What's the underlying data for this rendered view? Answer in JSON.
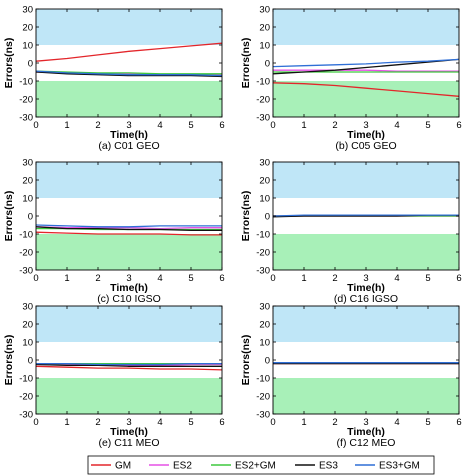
{
  "chart_data": [
    {
      "type": "line",
      "caption": "(a) C01 GEO",
      "xlabel": "Time(h)",
      "ylabel": "Errors(ns)",
      "xlim": [
        0,
        6
      ],
      "ylim": [
        -30,
        30
      ],
      "xticks": [
        0,
        1,
        2,
        3,
        4,
        5,
        6
      ],
      "yticks": [
        -30,
        -20,
        -10,
        0,
        10,
        20,
        30
      ],
      "bands": [
        {
          "from": 10,
          "to": 30,
          "color": "#bfe6f7"
        },
        {
          "from": -30,
          "to": -10,
          "color": "#a8f0b8"
        }
      ],
      "x": [
        0,
        1,
        2,
        3,
        4,
        5,
        6
      ],
      "series": [
        {
          "name": "GM",
          "color": "#e3262b",
          "values": [
            1,
            2.5,
            4.5,
            6.5,
            8,
            9.5,
            11
          ]
        },
        {
          "name": "ES2",
          "color": "#e651e6",
          "values": [
            -5,
            -5.5,
            -6,
            -6,
            -6.5,
            -6.5,
            -6.5
          ]
        },
        {
          "name": "ES2+GM",
          "color": "#3ec93e",
          "values": [
            -4.5,
            -5,
            -5.5,
            -5.5,
            -6,
            -6,
            -6
          ]
        },
        {
          "name": "ES3",
          "color": "#111111",
          "values": [
            -5,
            -6,
            -6.5,
            -7,
            -7,
            -7,
            -7.5
          ]
        },
        {
          "name": "ES3+GM",
          "color": "#2f6fd6",
          "values": [
            -4.5,
            -5.5,
            -6,
            -6.5,
            -6.5,
            -6.5,
            -7
          ]
        }
      ]
    },
    {
      "type": "line",
      "caption": "(b) C05 GEO",
      "xlabel": "Time(h)",
      "ylabel": "Errors(ns)",
      "xlim": [
        0,
        6
      ],
      "ylim": [
        -30,
        30
      ],
      "xticks": [
        0,
        1,
        2,
        3,
        4,
        5,
        6
      ],
      "yticks": [
        -30,
        -20,
        -10,
        0,
        10,
        20,
        30
      ],
      "bands": [
        {
          "from": 10,
          "to": 30,
          "color": "#bfe6f7"
        },
        {
          "from": -30,
          "to": -10,
          "color": "#a8f0b8"
        }
      ],
      "x": [
        0,
        1,
        2,
        3,
        4,
        5,
        6
      ],
      "series": [
        {
          "name": "GM",
          "color": "#e3262b",
          "values": [
            -11,
            -11.5,
            -12.5,
            -14,
            -15.5,
            -17,
            -18.5
          ]
        },
        {
          "name": "ES2",
          "color": "#e651e6",
          "values": [
            -4,
            -4,
            -4,
            -4,
            -4.5,
            -4.5,
            -4.5
          ]
        },
        {
          "name": "ES2+GM",
          "color": "#3ec93e",
          "values": [
            -5,
            -5,
            -5,
            -5,
            -5,
            -5,
            -5
          ]
        },
        {
          "name": "ES3",
          "color": "#111111",
          "values": [
            -6,
            -5,
            -4,
            -2.5,
            -1,
            0.5,
            2
          ]
        },
        {
          "name": "ES3+GM",
          "color": "#2f6fd6",
          "values": [
            -2,
            -1.5,
            -1,
            -0.5,
            0.5,
            1,
            2
          ]
        }
      ]
    },
    {
      "type": "line",
      "caption": "(c) C10 IGSO",
      "xlabel": "Time(h)",
      "ylabel": "Errors(ns)",
      "xlim": [
        0,
        6
      ],
      "ylim": [
        -30,
        30
      ],
      "xticks": [
        0,
        1,
        2,
        3,
        4,
        5,
        6
      ],
      "yticks": [
        -30,
        -20,
        -10,
        0,
        10,
        20,
        30
      ],
      "bands": [
        {
          "from": 10,
          "to": 30,
          "color": "#bfe6f7"
        },
        {
          "from": -30,
          "to": -10,
          "color": "#a8f0b8"
        }
      ],
      "x": [
        0,
        1,
        2,
        3,
        4,
        5,
        6
      ],
      "series": [
        {
          "name": "GM",
          "color": "#e3262b",
          "values": [
            -9,
            -9.5,
            -10,
            -10,
            -10,
            -10.5,
            -10.5
          ]
        },
        {
          "name": "ES2",
          "color": "#e651e6",
          "values": [
            -6,
            -6.5,
            -6.5,
            -6.5,
            -7,
            -6.5,
            -6.5
          ]
        },
        {
          "name": "ES2+GM",
          "color": "#3ec93e",
          "values": [
            -7,
            -7,
            -7.5,
            -7.5,
            -7.5,
            -7.5,
            -7.5
          ]
        },
        {
          "name": "ES3",
          "color": "#111111",
          "values": [
            -6,
            -7,
            -7,
            -7.5,
            -7.5,
            -8,
            -8
          ]
        },
        {
          "name": "ES3+GM",
          "color": "#2f6fd6",
          "values": [
            -5,
            -5.5,
            -6,
            -6,
            -5.5,
            -5.5,
            -5.5
          ]
        }
      ]
    },
    {
      "type": "line",
      "caption": "(d) C16 IGSO",
      "xlabel": "Time(h)",
      "ylabel": "Errors(ns)",
      "xlim": [
        0,
        6
      ],
      "ylim": [
        -30,
        30
      ],
      "xticks": [
        0,
        1,
        2,
        3,
        4,
        5,
        6
      ],
      "yticks": [
        -30,
        -20,
        -10,
        0,
        10,
        20,
        30
      ],
      "bands": [
        {
          "from": 10,
          "to": 30,
          "color": "#bfe6f7"
        },
        {
          "from": -30,
          "to": -10,
          "color": "#a8f0b8"
        }
      ],
      "x": [
        0,
        1,
        2,
        3,
        4,
        5,
        6
      ],
      "series": [
        {
          "name": "GM",
          "color": "#e3262b",
          "values": [
            0,
            0,
            0,
            0,
            0,
            0,
            0
          ]
        },
        {
          "name": "ES2",
          "color": "#e651e6",
          "values": [
            0,
            0,
            0,
            0,
            0,
            0,
            0
          ]
        },
        {
          "name": "ES2+GM",
          "color": "#3ec93e",
          "values": [
            0,
            0,
            0,
            0,
            0,
            0,
            0
          ]
        },
        {
          "name": "ES3",
          "color": "#111111",
          "values": [
            -0.5,
            0,
            0,
            0,
            0,
            0.5,
            0.5
          ]
        },
        {
          "name": "ES3+GM",
          "color": "#2f6fd6",
          "values": [
            0,
            0.5,
            0.5,
            0.5,
            0.5,
            0.5,
            0.5
          ]
        }
      ]
    },
    {
      "type": "line",
      "caption": "(e) C11 MEO",
      "xlabel": "Time(h)",
      "ylabel": "Errors(ns)",
      "xlim": [
        0,
        6
      ],
      "ylim": [
        -30,
        30
      ],
      "xticks": [
        0,
        1,
        2,
        3,
        4,
        5,
        6
      ],
      "yticks": [
        -30,
        -20,
        -10,
        0,
        10,
        20,
        30
      ],
      "bands": [
        {
          "from": 10,
          "to": 30,
          "color": "#bfe6f7"
        },
        {
          "from": -30,
          "to": -10,
          "color": "#a8f0b8"
        }
      ],
      "x": [
        0,
        1,
        2,
        3,
        4,
        5,
        6
      ],
      "series": [
        {
          "name": "GM",
          "color": "#e3262b",
          "values": [
            -3.5,
            -4,
            -4.5,
            -4.5,
            -5,
            -5,
            -5.5
          ]
        },
        {
          "name": "ES2",
          "color": "#e651e6",
          "values": [
            -2,
            -2.5,
            -2.5,
            -3,
            -3,
            -2.5,
            -2.5
          ]
        },
        {
          "name": "ES2+GM",
          "color": "#3ec93e",
          "values": [
            -2,
            -2,
            -2,
            -2,
            -2,
            -2,
            -2
          ]
        },
        {
          "name": "ES3",
          "color": "#111111",
          "values": [
            -2.5,
            -3,
            -3,
            -3.5,
            -3.5,
            -3.5,
            -3.5
          ]
        },
        {
          "name": "ES3+GM",
          "color": "#2f6fd6",
          "values": [
            -2,
            -2,
            -2.5,
            -2.5,
            -2.5,
            -2,
            -2
          ]
        }
      ]
    },
    {
      "type": "line",
      "caption": "(f) C12 MEO",
      "xlabel": "Time(h)",
      "ylabel": "Errors(ns)",
      "xlim": [
        0,
        6
      ],
      "ylim": [
        -30,
        30
      ],
      "xticks": [
        0,
        1,
        2,
        3,
        4,
        5,
        6
      ],
      "yticks": [
        -30,
        -20,
        -10,
        0,
        10,
        20,
        30
      ],
      "bands": [
        {
          "from": 10,
          "to": 30,
          "color": "#bfe6f7"
        },
        {
          "from": -30,
          "to": -10,
          "color": "#a8f0b8"
        }
      ],
      "x": [
        0,
        1,
        2,
        3,
        4,
        5,
        6
      ],
      "series": [
        {
          "name": "GM",
          "color": "#e3262b",
          "values": [
            -2,
            -2,
            -2,
            -2,
            -2,
            -2,
            -2
          ]
        },
        {
          "name": "ES2",
          "color": "#e651e6",
          "values": [
            -1.5,
            -1.5,
            -1.5,
            -1.5,
            -1.5,
            -1.5,
            -1.5
          ]
        },
        {
          "name": "ES2+GM",
          "color": "#3ec93e",
          "values": [
            -1.5,
            -1.5,
            -1.5,
            -1.5,
            -1.5,
            -1.5,
            -1.5
          ]
        },
        {
          "name": "ES3",
          "color": "#111111",
          "values": [
            -2,
            -2,
            -2,
            -2,
            -2,
            -2,
            -2
          ]
        },
        {
          "name": "ES3+GM",
          "color": "#2f6fd6",
          "values": [
            -1.5,
            -1.5,
            -1.5,
            -1.5,
            -1.5,
            -1.5,
            -1.5
          ]
        }
      ]
    }
  ],
  "legend": {
    "placement": "bottom",
    "items": [
      {
        "label": "GM",
        "color": "#e3262b"
      },
      {
        "label": "ES2",
        "color": "#e651e6"
      },
      {
        "label": "ES2+GM",
        "color": "#3ec93e"
      },
      {
        "label": "ES3",
        "color": "#111111"
      },
      {
        "label": "ES3+GM",
        "color": "#2f6fd6"
      }
    ]
  }
}
